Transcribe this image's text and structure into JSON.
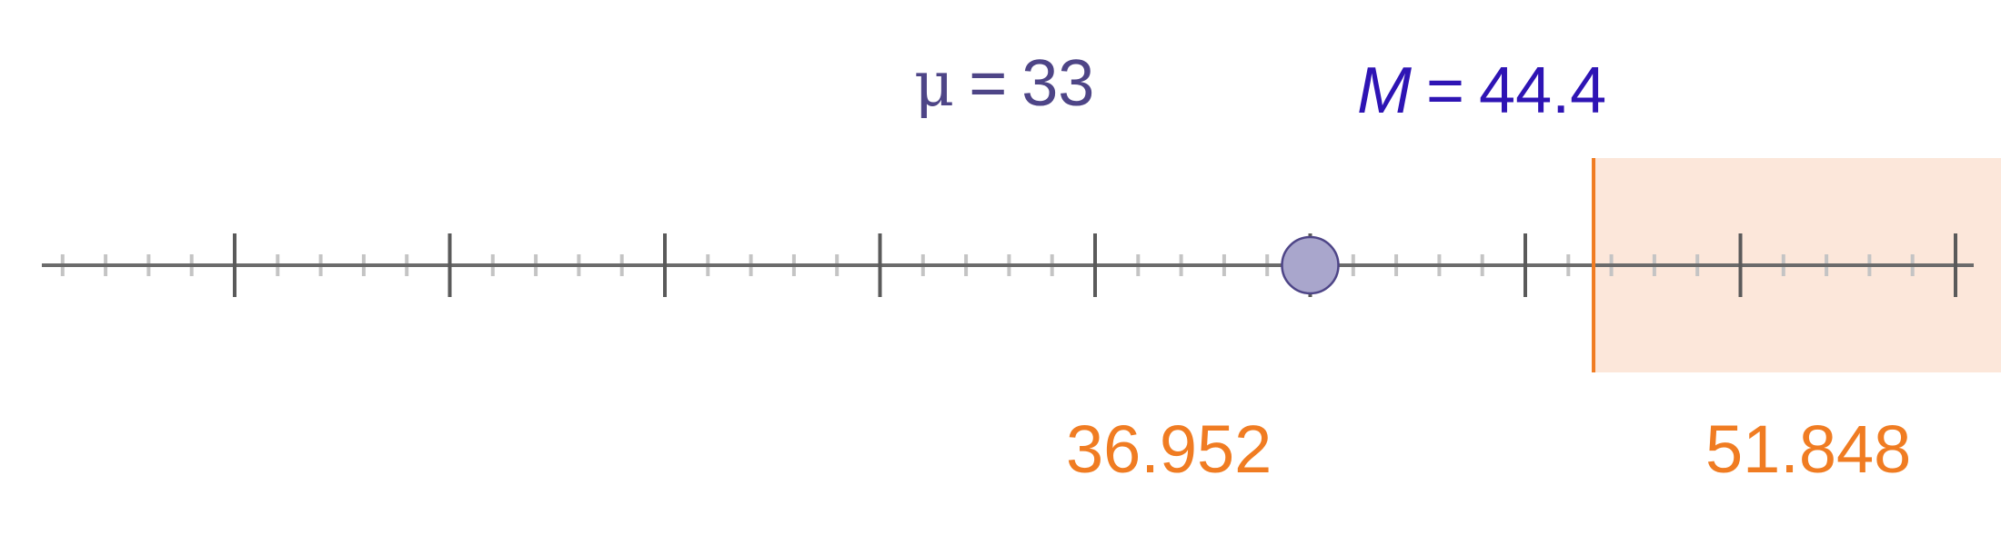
{
  "axis": {
    "min": 15,
    "max": 54,
    "major_step": 3,
    "minor_step": 0.6,
    "tick_labels_shown": false
  },
  "population_mean": {
    "symbol": "μ",
    "equals": "=",
    "value": "33",
    "x_value": 33,
    "marker": "circle",
    "color": "#4e4587",
    "fill": "#a9a6cc"
  },
  "sample_mean": {
    "symbol": "M",
    "equals": "=",
    "value": "44.4",
    "x_value": 44.4,
    "marker": "diamond",
    "color": "#2e14b4",
    "fill": "#8a70c9"
  },
  "confidence_interval": {
    "lower": 36.952,
    "upper": 51.848,
    "lower_label": "36.952",
    "upper_label": "51.848",
    "color": "#f07c22",
    "fill": "#fbe3d3"
  },
  "colors": {
    "axis_line": "#6b6b6b",
    "major_tick": "#5a5a5a",
    "minor_tick": "#c4c4c4"
  }
}
